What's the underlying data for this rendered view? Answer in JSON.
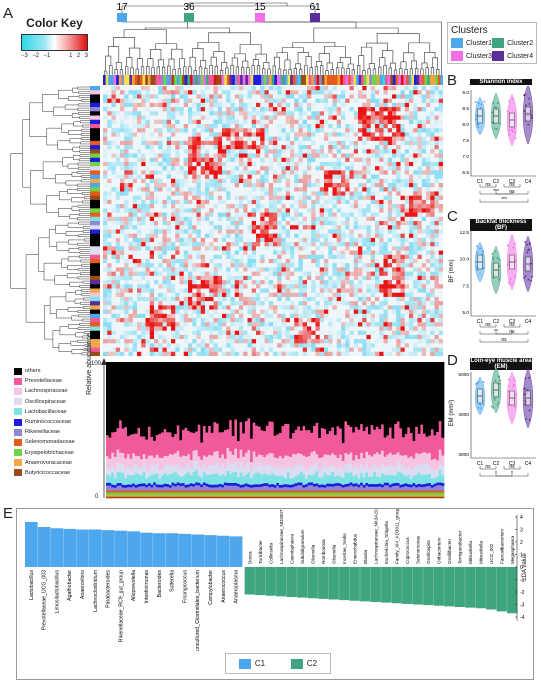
{
  "panels": {
    "A": "A",
    "B": "B",
    "C": "C",
    "D": "D",
    "E": "E"
  },
  "color_key": {
    "title": "Color Key",
    "ticks": [
      "−3",
      "−2",
      "−1",
      "1",
      "2",
      "3"
    ]
  },
  "cluster_sizes": [
    "17",
    "36",
    "15",
    "61"
  ],
  "clusters_legend": {
    "title": "Clusters",
    "items": [
      {
        "label": "Cluster1",
        "color": "#4ea6ec"
      },
      {
        "label": "Cluster2",
        "color": "#3fa57e"
      },
      {
        "label": "Cluster3",
        "color": "#f26ee8"
      },
      {
        "label": "Cluster4",
        "color": "#5b2c9b"
      }
    ]
  },
  "families": [
    {
      "label": "others",
      "color": "#000000"
    },
    {
      "label": "Prevotellaceae",
      "color": "#f15a9a"
    },
    {
      "label": "Lachnospiraceae",
      "color": "#f4c4e2"
    },
    {
      "label": "Oscillospiraceae",
      "color": "#dcdcf2"
    },
    {
      "label": "Lactobacillaceae",
      "color": "#7fe3e3"
    },
    {
      "label": "Ruminococcaceae",
      "color": "#1d1de0"
    },
    {
      "label": "Rikenellaceae",
      "color": "#8f86d6"
    },
    {
      "label": "Selenomonadaceae",
      "color": "#e35c1c"
    },
    {
      "label": "Erysipelotrichaceae",
      "color": "#6fd447"
    },
    {
      "label": "Anaerovoracaceae",
      "color": "#f0a84a"
    },
    {
      "label": "Butyricicoccaceae",
      "color": "#9b4a1a"
    }
  ],
  "abundance": {
    "ylabel": "Relative abundance",
    "y_top": "100",
    "y_bottom": "0"
  },
  "boxplots": [
    {
      "title": "Shannon index",
      "ylabel": "",
      "yticks": [
        "9.0",
        "8.5",
        "8.0",
        "7.5",
        "7.0",
        "6.5"
      ],
      "xticks": [
        "C1",
        "C2",
        "C3",
        "C4"
      ],
      "sig": [
        "ns",
        "ns",
        "***",
        "ns",
        "***"
      ]
    },
    {
      "title": "Backfat thickness (BF)",
      "ylabel": "BF (mm)",
      "yticks": [
        "12.5",
        "10.0",
        "7.5",
        "5.0"
      ],
      "xticks": [
        "C1",
        "C2",
        "C3",
        "C4"
      ],
      "sig": [
        "ns",
        "ns",
        "**",
        "ns",
        "ns"
      ]
    },
    {
      "title": "Loin-eye muscle area (EM)",
      "ylabel": "EM (mm²)",
      "yticks": [
        "5000",
        "4000",
        "3000"
      ],
      "xticks": [
        "C1",
        "C2",
        "C3",
        "C4"
      ],
      "sig": [
        "ns",
        "ns",
        "*",
        "*"
      ]
    }
  ],
  "lda": {
    "ylabel": "LDA value",
    "yticks": [
      "4",
      "3",
      "2",
      "1",
      "0",
      "-1",
      "-2",
      "-3",
      "-4"
    ],
    "legend": [
      {
        "label": "C1",
        "color": "#4ea6ec"
      },
      {
        "label": "C2",
        "color": "#3fa57e"
      }
    ],
    "c1": [
      {
        "name": "Lactobacillus",
        "v": 3.6
      },
      {
        "name": "Prevotellaceae_UCG_003",
        "v": 3.2
      },
      {
        "name": "Limosilactobacillus",
        "v": 3.1
      },
      {
        "name": "Agathobacter",
        "v": 3.05
      },
      {
        "name": "Anaerovibrio",
        "v": 3.0
      },
      {
        "name": "Lachnoclostridium",
        "v": 3.0
      },
      {
        "name": "Parabacteroides",
        "v": 2.95
      },
      {
        "name": "Rikenellaceae_RC9_gut_group",
        "v": 2.9
      },
      {
        "name": "Alloprevotella",
        "v": 2.85
      },
      {
        "name": "Intestinimonas",
        "v": 2.75
      },
      {
        "name": "Bacteroides",
        "v": 2.7
      },
      {
        "name": "Sutterella",
        "v": 2.7
      },
      {
        "name": "Frisingicoccus",
        "v": 2.65
      },
      {
        "name": "uncultured_Clostridiales_bacterium",
        "v": 2.6
      },
      {
        "name": "Campylobacter",
        "v": 2.55
      },
      {
        "name": "Anaerococcus",
        "v": 2.5
      },
      {
        "name": "Anaeroplasma",
        "v": 2.45
      }
    ],
    "c2": [
      {
        "name": "Dorea",
        "v": -2.2
      },
      {
        "name": "Turicibacter",
        "v": -2.25
      },
      {
        "name": "Collinsella",
        "v": -2.3
      },
      {
        "name": "Lachnospiraceae_ND3007_group",
        "v": -2.35
      },
      {
        "name": "Catenisphaera",
        "v": -2.4
      },
      {
        "name": "Subdoligranulum",
        "v": -2.45
      },
      {
        "name": "Olsenella",
        "v": -2.5
      },
      {
        "name": "Romboutsia",
        "v": -2.55
      },
      {
        "name": "Olsenella",
        "v": -2.6
      },
      {
        "name": "Incertae_Sedis",
        "v": -2.65
      },
      {
        "name": "Enterorhabdus",
        "v": -2.7
      },
      {
        "name": "Blautia",
        "v": -2.75
      },
      {
        "name": "Lachnospiraceae_NK3A20_group",
        "v": -2.8
      },
      {
        "name": "Escherichia_Shigella",
        "v": -2.85
      },
      {
        "name": "Family_XIII_AD3011_group",
        "v": -2.9
      },
      {
        "name": "Coprococcus",
        "v": -2.95
      },
      {
        "name": "Selenomonas",
        "v": -3.0
      },
      {
        "name": "Oscillospira",
        "v": -3.05
      },
      {
        "name": "Oribacterium",
        "v": -3.1
      },
      {
        "name": "Oscillibacter",
        "v": -3.15
      },
      {
        "name": "Terrisporobacter",
        "v": -3.2
      },
      {
        "name": "Mitsuokella",
        "v": -3.25
      },
      {
        "name": "Mitsuokella",
        "v": -3.3
      },
      {
        "name": "UCG_002",
        "v": -3.4
      },
      {
        "name": "Faecalibacterium",
        "v": -3.55
      },
      {
        "name": "Megasphaera",
        "v": -3.7
      }
    ]
  }
}
